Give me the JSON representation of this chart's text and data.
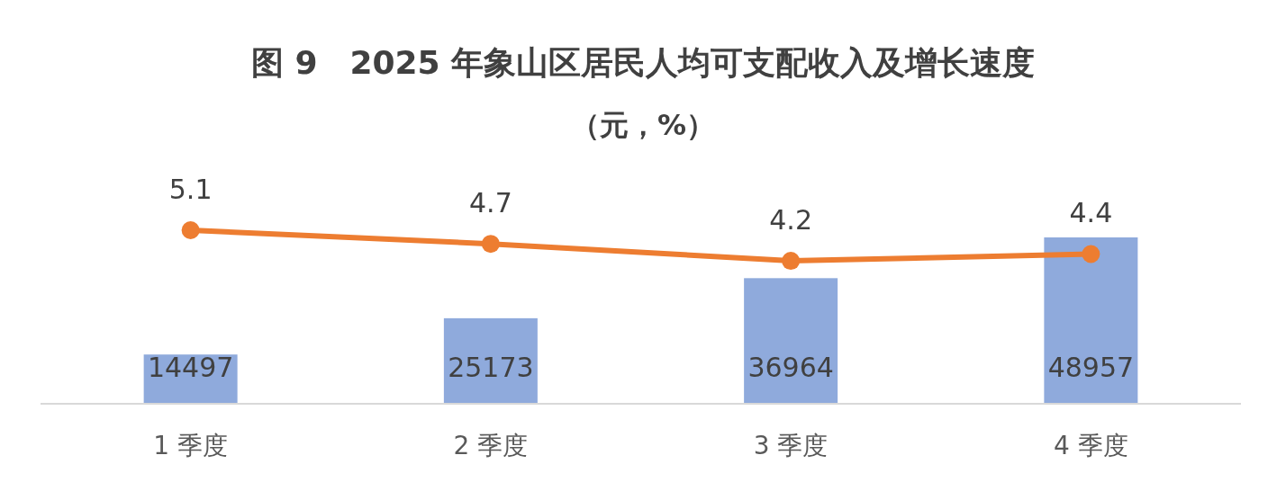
{
  "chart_data": {
    "type": "bar",
    "title": "图 9　2025 年象山区居民人均可支配收入及增长速度",
    "subtitle": "（元，%）",
    "categories": [
      "1 季度",
      "2 季度",
      "3 季度",
      "4 季度"
    ],
    "series": [
      {
        "color": "#8faadc",
        "values": [
          14497,
          25173,
          36964,
          48957
        ]
      },
      {
        "type": "line",
        "axis": "y2",
        "color": "#ed7d31",
        "values": [
          5.1,
          4.7,
          4.2,
          4.4
        ]
      }
    ],
    "data_labels": true,
    "marker": "circle"
  }
}
